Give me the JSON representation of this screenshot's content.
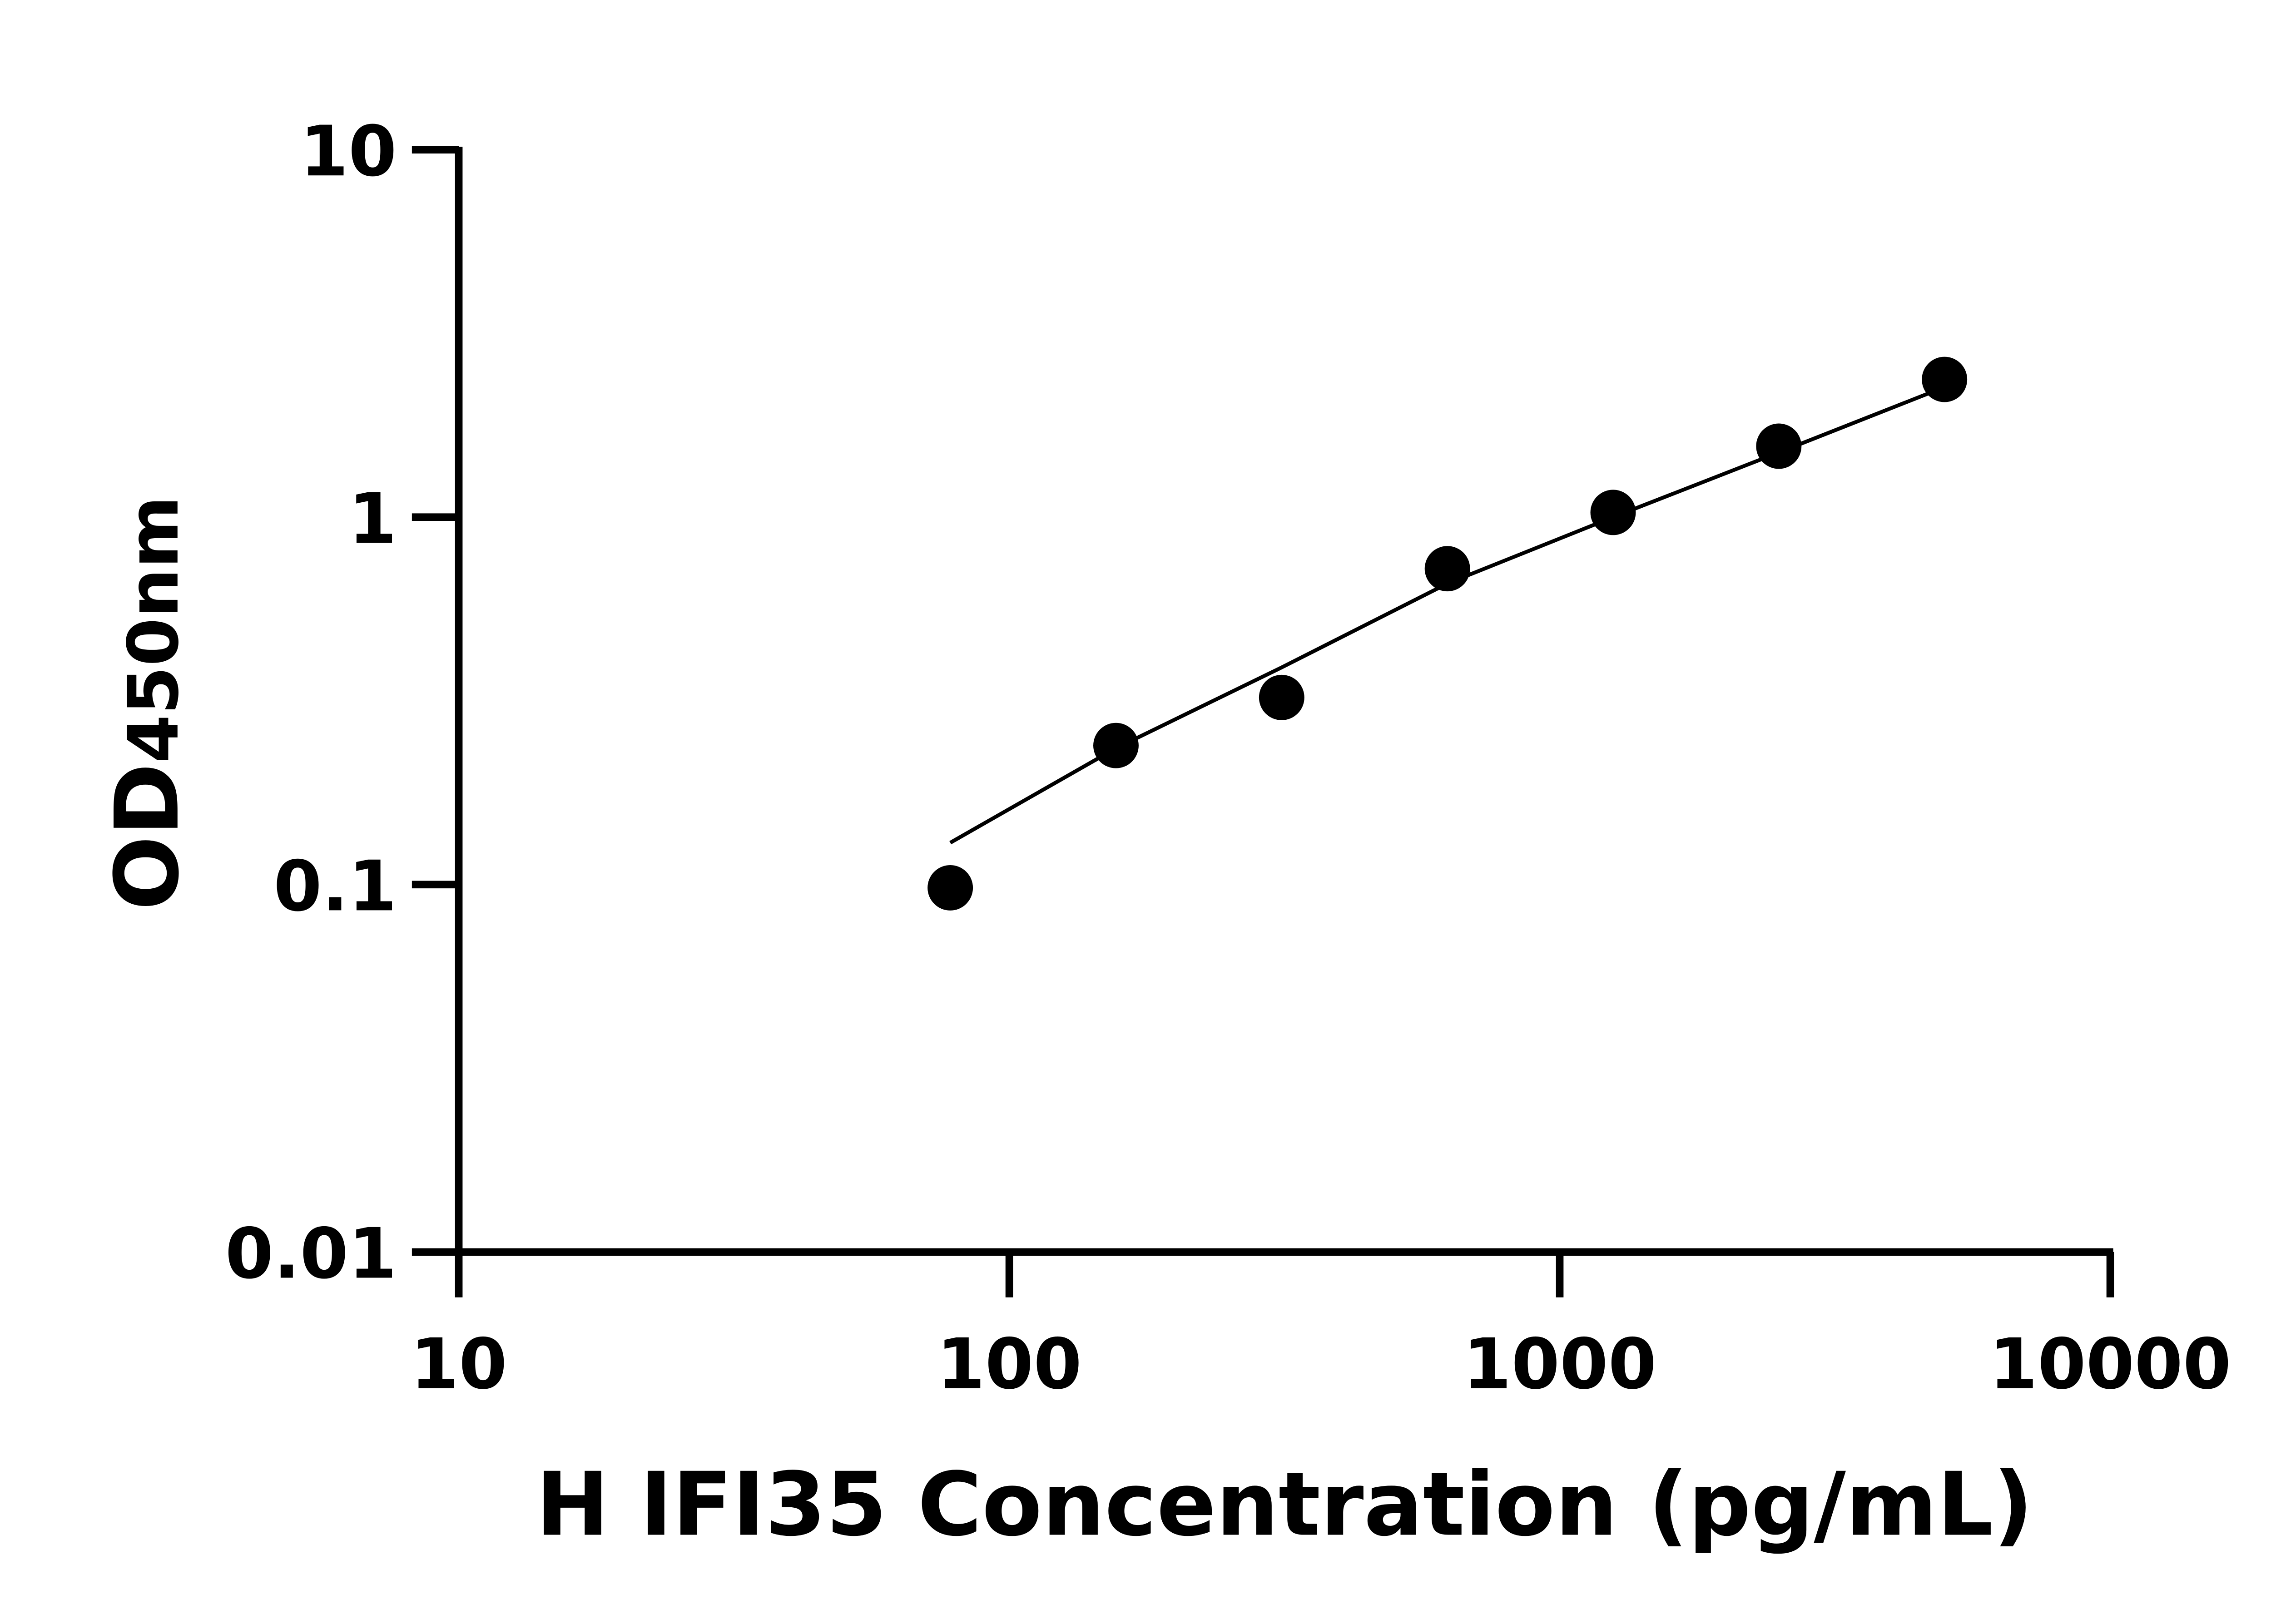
{
  "chart_data": {
    "type": "scatter",
    "title": "",
    "xlabel": "H IFI35 Concentration (pg/mL)",
    "ylabel_main": "OD",
    "ylabel_sub": "450nm",
    "x_scale": "log",
    "y_scale": "log",
    "xlim": [
      10,
      10000
    ],
    "ylim": [
      0.01,
      10
    ],
    "x_ticks": [
      "10",
      "100",
      "1000",
      "10000"
    ],
    "y_ticks": [
      "0.01",
      "0.1",
      "1",
      "10"
    ],
    "grid": false,
    "legend": "none",
    "point_color": "#000000",
    "points": [
      {
        "x": 78.125,
        "y": 0.098
      },
      {
        "x": 156.25,
        "y": 0.239
      },
      {
        "x": 312.5,
        "y": 0.323
      },
      {
        "x": 625,
        "y": 0.724
      },
      {
        "x": 1250,
        "y": 1.03
      },
      {
        "x": 2500,
        "y": 1.56
      },
      {
        "x": 5000,
        "y": 2.37
      }
    ],
    "fit_curve": [
      {
        "x": 78.125,
        "y": 0.13
      },
      {
        "x": 156.25,
        "y": 0.235
      },
      {
        "x": 312.5,
        "y": 0.39
      },
      {
        "x": 625,
        "y": 0.66
      },
      {
        "x": 1250,
        "y": 1.0
      },
      {
        "x": 2500,
        "y": 1.5
      },
      {
        "x": 5000,
        "y": 2.26
      }
    ]
  }
}
